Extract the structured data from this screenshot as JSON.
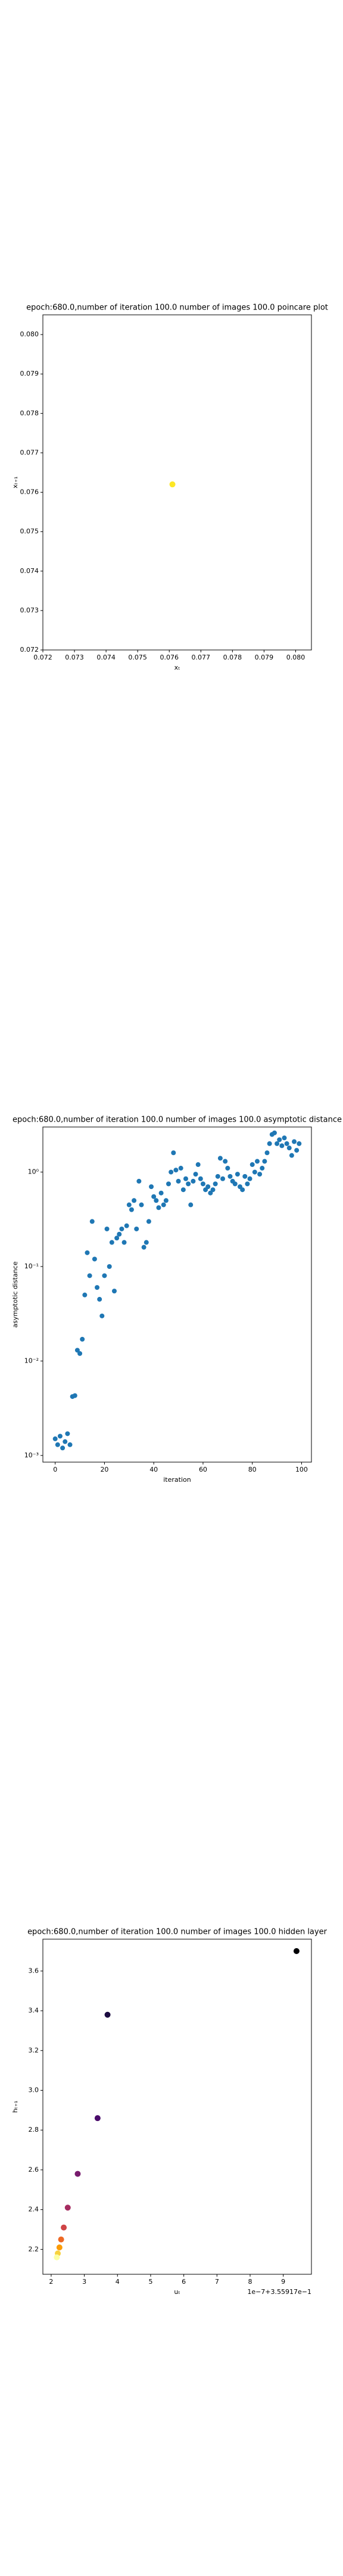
{
  "chart_data": [
    {
      "type": "scatter",
      "title": "epoch:680.0,number of iteration 100.0 number of images 100.0 poincare plot",
      "x_label": "xₜ",
      "y_label": "xₜ₊₁",
      "series": [
        {
          "color": "#fde725",
          "x": [
            0.0761
          ],
          "values": [
            0.0762
          ]
        }
      ],
      "xlim": [
        0.072,
        0.0805
      ],
      "ylim": [
        0.072,
        0.0805
      ],
      "xticks": [
        0.072,
        0.073,
        0.074,
        0.075,
        0.076,
        0.077,
        0.078,
        0.079,
        {
          "value": 0.08,
          "label": "0.080"
        }
      ],
      "yticks": [
        0.072,
        0.073,
        0.074,
        0.075,
        0.076,
        0.077,
        0.078,
        0.079,
        {
          "value": 0.08,
          "label": "0.080"
        }
      ]
    },
    {
      "type": "scatter",
      "title": "epoch:680.0,number of iteration 100.0  number of images 100.0 asymptotic distance",
      "x_label": "iteration",
      "y_label": "asymptotic distance",
      "yscale": "log",
      "series": [
        {
          "color": "#1f77b4",
          "x": [
            0,
            1,
            2,
            3,
            4,
            5,
            6,
            7,
            8,
            9,
            10,
            11,
            12,
            13,
            14,
            15,
            16,
            17,
            18,
            19,
            20,
            21,
            22,
            23,
            24,
            25,
            26,
            27,
            28,
            29,
            30,
            31,
            32,
            33,
            34,
            35,
            36,
            37,
            38,
            39,
            40,
            41,
            42,
            43,
            44,
            45,
            46,
            47,
            48,
            49,
            50,
            51,
            52,
            53,
            54,
            55,
            56,
            57,
            58,
            59,
            60,
            61,
            62,
            63,
            64,
            65,
            66,
            67,
            68,
            69,
            70,
            71,
            72,
            73,
            74,
            75,
            76,
            77,
            78,
            79,
            80,
            81,
            82,
            83,
            84,
            85,
            86,
            87,
            88,
            89,
            90,
            91,
            92,
            93,
            94,
            95,
            96,
            97,
            98,
            99
          ],
          "values": [
            0.0015,
            0.0013,
            0.0016,
            0.0012,
            0.0014,
            0.0017,
            0.0013,
            0.0042,
            0.0043,
            0.013,
            0.012,
            0.017,
            0.05,
            0.14,
            0.08,
            0.3,
            0.12,
            0.06,
            0.045,
            0.03,
            0.08,
            0.25,
            0.1,
            0.18,
            0.055,
            0.2,
            0.22,
            0.25,
            0.18,
            0.27,
            0.45,
            0.4,
            0.5,
            0.25,
            0.8,
            0.45,
            0.16,
            0.18,
            0.3,
            0.7,
            0.55,
            0.5,
            0.42,
            0.6,
            0.45,
            0.5,
            0.75,
            1.0,
            1.6,
            1.05,
            0.8,
            1.1,
            0.65,
            0.85,
            0.75,
            0.45,
            0.8,
            0.95,
            1.2,
            0.85,
            0.75,
            0.65,
            0.7,
            0.6,
            0.65,
            0.75,
            0.9,
            1.4,
            0.85,
            1.3,
            1.1,
            0.9,
            0.8,
            0.75,
            0.95,
            0.7,
            0.65,
            0.9,
            0.75,
            0.85,
            1.2,
            1.0,
            1.3,
            0.95,
            1.1,
            1.3,
            1.6,
            2.0,
            2.5,
            2.6,
            2.0,
            2.2,
            1.9,
            2.3,
            2.0,
            1.8,
            1.5,
            2.1,
            1.7,
            2.0
          ]
        }
      ],
      "xlim": [
        -5,
        104
      ],
      "ylim": [
        0.00085,
        3
      ],
      "xticks": [
        0,
        20,
        40,
        60,
        80,
        100
      ],
      "yticks": [
        {
          "value": 0.001,
          "label": "10⁻³"
        },
        {
          "value": 0.01,
          "label": "10⁻²"
        },
        {
          "value": 0.1,
          "label": "10⁻¹"
        },
        {
          "value": 1,
          "label": "10⁰"
        }
      ]
    },
    {
      "type": "scatter",
      "title": "epoch:680.0,number of iteration 100.0  number of images 100.0 hidden layer",
      "x_label": "uₜ",
      "y_label": "hₜ₊₁",
      "x_offset": "1e−7+3.55917e−1",
      "series": [
        {
          "colors": [
            "#000004",
            "#1b0c41",
            "#4a0c6b",
            "#781c6d",
            "#a52c60",
            "#cf4446",
            "#ed6925",
            "#fb9b06",
            "#f7d13d",
            "#fcffa4"
          ],
          "x": [
            9.4,
            3.7,
            3.4,
            2.8,
            2.5,
            2.38,
            2.3,
            2.25,
            2.2,
            2.17
          ],
          "values": [
            3.7,
            3.38,
            2.86,
            2.58,
            2.41,
            2.31,
            2.25,
            2.21,
            2.18,
            2.16
          ]
        }
      ],
      "xlim": [
        1.75,
        9.85
      ],
      "ylim": [
        2.075,
        3.76
      ],
      "xticks": [
        2,
        3,
        4,
        5,
        6,
        7,
        8,
        9
      ],
      "yticks": [
        2.2,
        2.4,
        2.6,
        2.8,
        {
          "value": 3.0,
          "label": "3.0"
        },
        3.2,
        3.4,
        3.6
      ]
    }
  ]
}
